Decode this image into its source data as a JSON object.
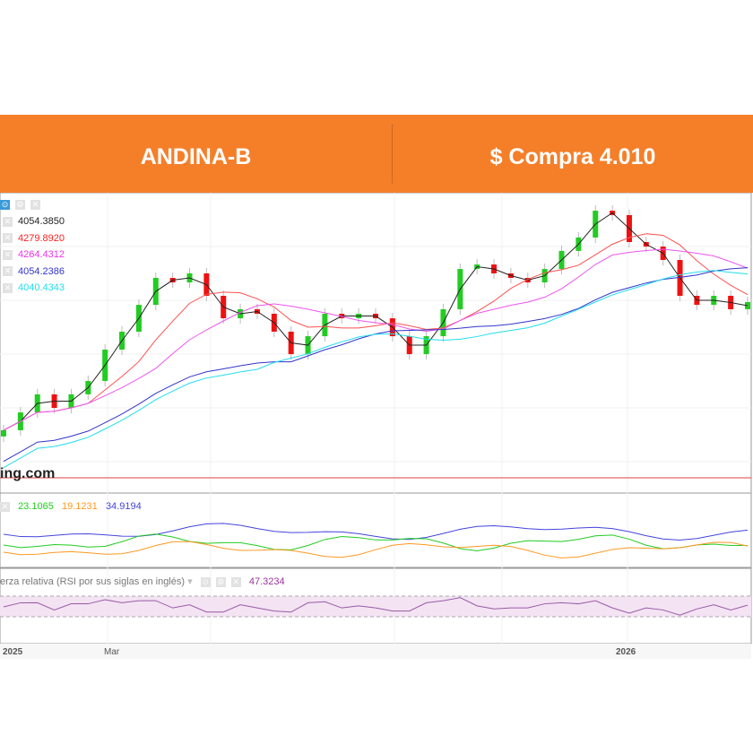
{
  "header": {
    "ticker": "ANDINA-B",
    "price_label": "$ Compra 4.010",
    "background": "#f57f29"
  },
  "legend": [
    {
      "value": "4054.3850",
      "color": "#222222"
    },
    {
      "value": "4279.8920",
      "color": "#ff2020"
    },
    {
      "value": "4264.4312",
      "color": "#ee33ee"
    },
    {
      "value": "4054.2386",
      "color": "#3333cc"
    },
    {
      "value": "4040.4343",
      "color": "#22ddee"
    }
  ],
  "watermark": "ing.com",
  "dmi": {
    "values": [
      {
        "value": "23.1065",
        "color": "#22cc22"
      },
      {
        "value": "19.1231",
        "color": "#ff9922"
      },
      {
        "value": "34.9194",
        "color": "#4444dd"
      }
    ]
  },
  "rsi": {
    "label": "erza relativa (RSI por sus siglas en inglés)",
    "value": "47.3234",
    "color": "#993399"
  },
  "xaxis": {
    "ticks": [
      "2025",
      "Mar",
      "2026"
    ]
  },
  "chart_data": {
    "type": "candlestick",
    "closes": [
      3188,
      3302,
      3418,
      3331,
      3418,
      3504,
      3705,
      3820,
      3992,
      4165,
      4136,
      4194,
      4050,
      3906,
      3964,
      3935,
      3820,
      3676,
      3791,
      3935,
      3906,
      3935,
      3906,
      3791,
      3676,
      3791,
      3964,
      4222,
      4251,
      4194,
      4165,
      4136,
      4222,
      4338,
      4424,
      4596,
      4568,
      4395,
      4366,
      4280,
      4050,
      3992,
      4050,
      3964,
      4010
    ],
    "up_color": "#22cc22",
    "down_color": "#ee1111"
  }
}
